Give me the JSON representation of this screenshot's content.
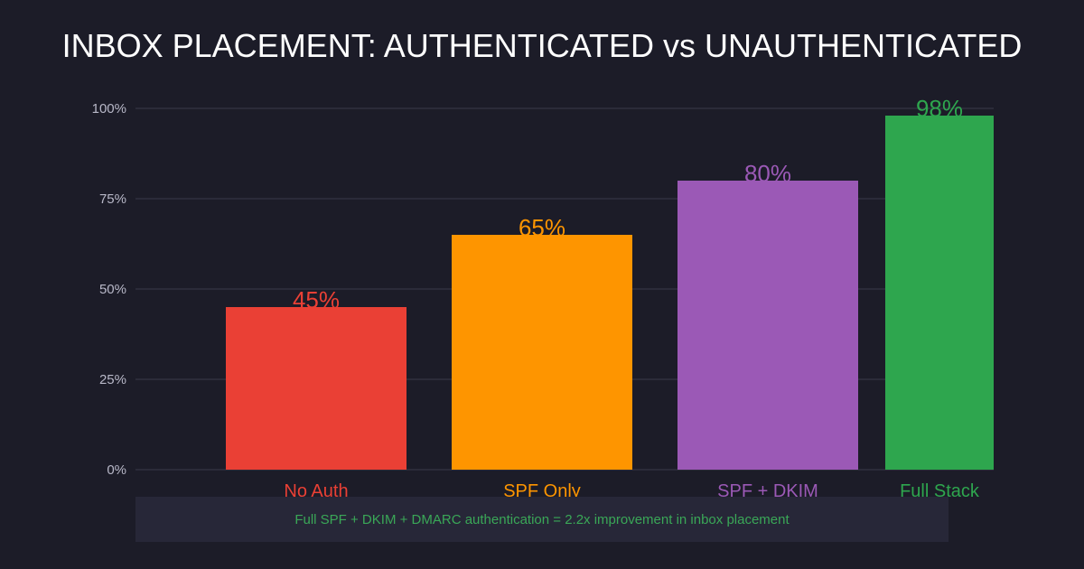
{
  "chart_data": {
    "type": "bar",
    "title": "INBOX PLACEMENT: AUTHENTICATED vs UNAUTHENTICATED",
    "categories": [
      "No Auth",
      "SPF Only",
      "SPF + DKIM",
      "Full Stack"
    ],
    "values": [
      45,
      65,
      80,
      98
    ],
    "data_labels": [
      "45%",
      "65%",
      "80%",
      "98%"
    ],
    "colors": [
      "#ea4035",
      "#fe9500",
      "#9b59b6",
      "#2ea64e"
    ],
    "yticks": [
      {
        "value": 0,
        "label": "0%"
      },
      {
        "value": 25,
        "label": "25%"
      },
      {
        "value": 50,
        "label": "50%"
      },
      {
        "value": 75,
        "label": "75%"
      },
      {
        "value": 100,
        "label": "100%"
      }
    ],
    "ylim": [
      0,
      100
    ],
    "grid": true,
    "xlabel": "",
    "ylabel": ""
  },
  "footer": {
    "note": "Full SPF + DKIM + DMARC authentication = 2.2x improvement in inbox placement"
  },
  "colors": {
    "background": "#1c1c28",
    "grid": "#3a3a4a",
    "tick_text": "#b8b8c8",
    "banner": "#272738",
    "note_text": "#3aa757"
  }
}
